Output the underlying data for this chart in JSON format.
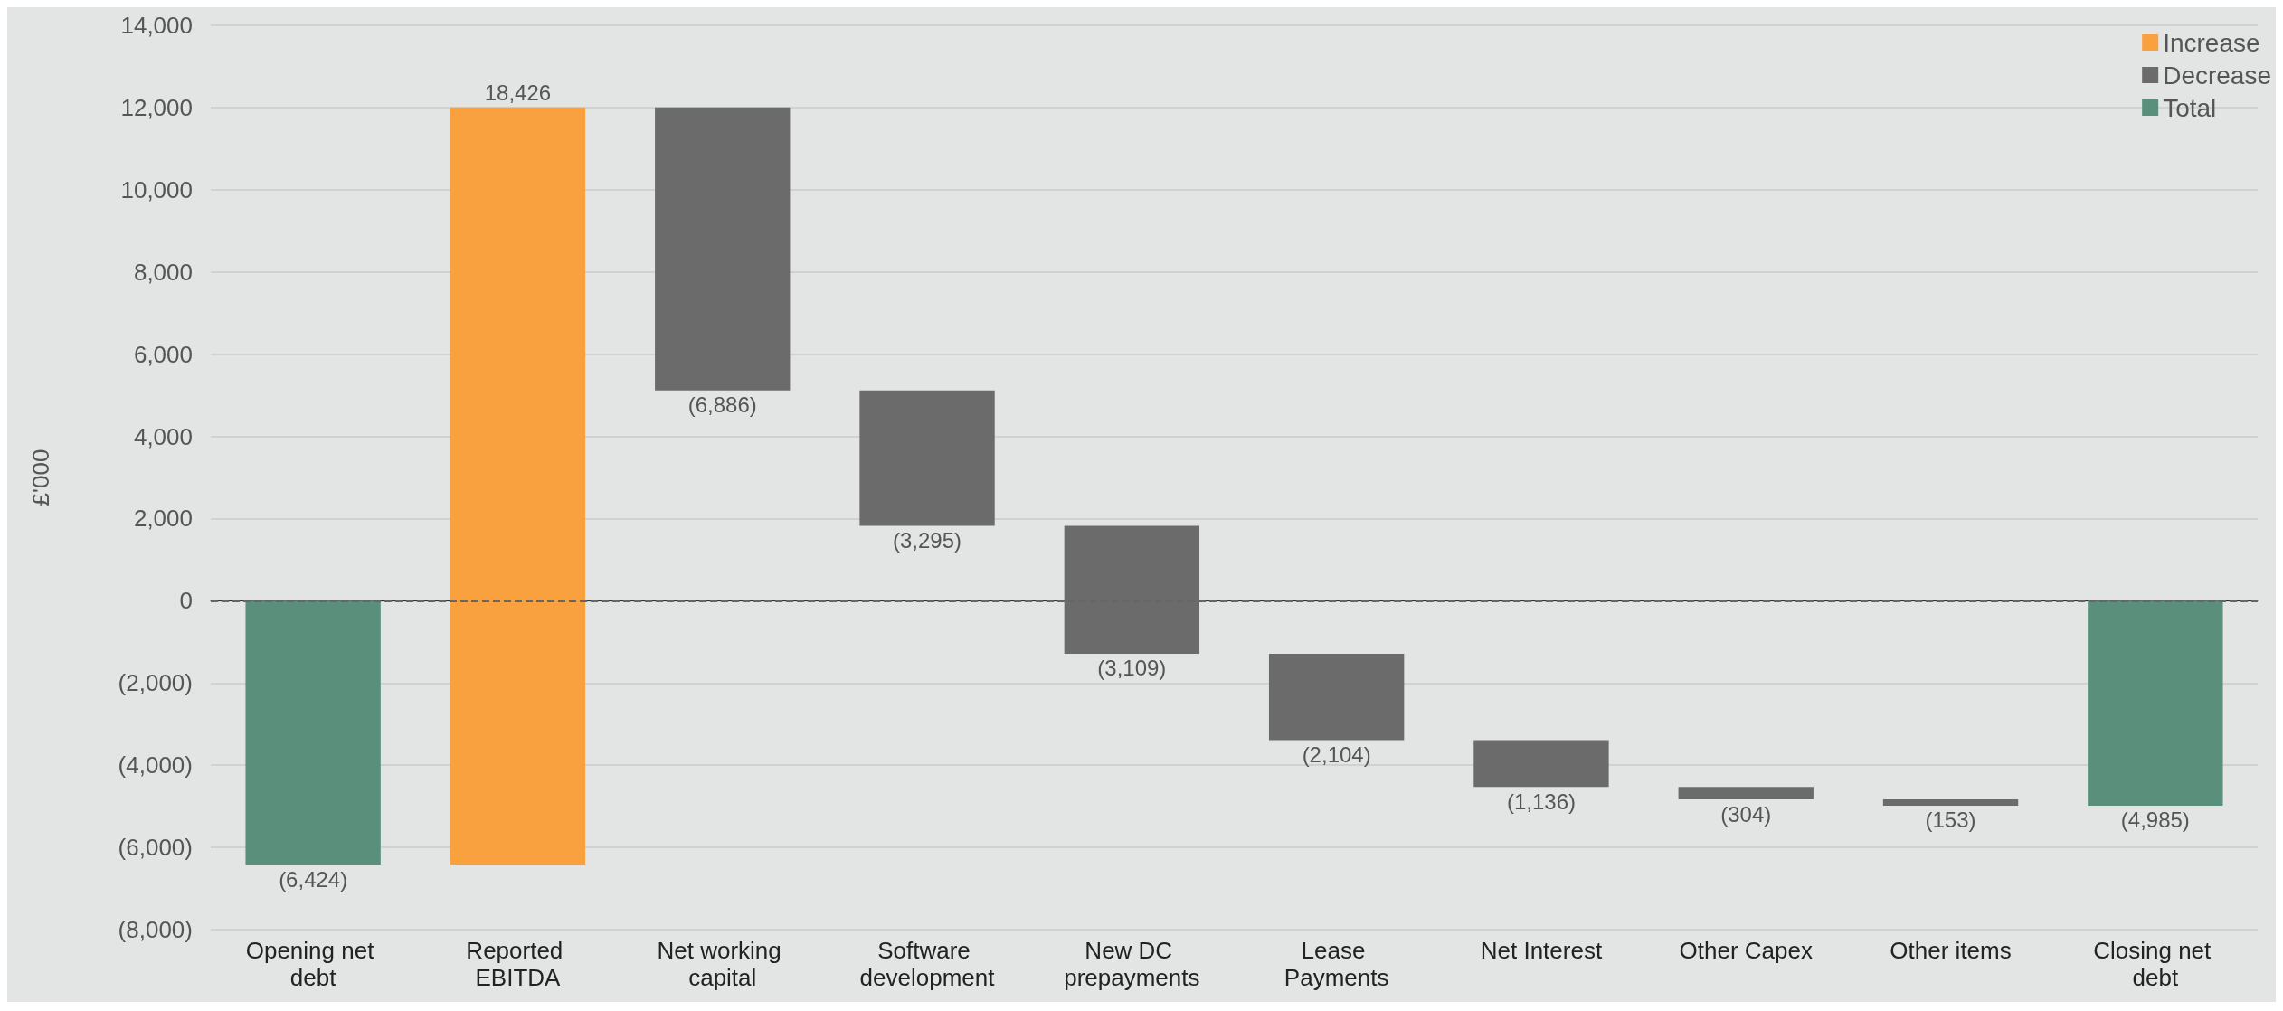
{
  "chart_data": {
    "type": "bar",
    "ylabel": "£'000",
    "categories": [
      "Opening net debt",
      "Reported EBITDA",
      "Net working capital",
      "Software development",
      "New DC prepayments",
      "Lease Payments",
      "Net Interest",
      "Other Capex",
      "Other items",
      "Closing net debt"
    ],
    "series": [
      {
        "name": "Increase",
        "color": "#f9a03f",
        "base": [
          null,
          -6424,
          null,
          null,
          null,
          null,
          null,
          null,
          null,
          null
        ],
        "values": [
          null,
          18426,
          null,
          null,
          null,
          null,
          null,
          null,
          null,
          null
        ],
        "value_labels": [
          null,
          "18,426",
          null,
          null,
          null,
          null,
          null,
          null,
          null,
          null
        ]
      },
      {
        "name": "Decrease",
        "color": "#6b6b6b",
        "base": [
          null,
          null,
          12002,
          5116,
          1821,
          -1288,
          -3392,
          -4528,
          -4832,
          null
        ],
        "values": [
          null,
          null,
          -6886,
          -3295,
          -3109,
          -2104,
          -1136,
          -304,
          -153,
          null
        ],
        "value_labels": [
          null,
          null,
          "(6,886)",
          "(3,295)",
          "(3,109)",
          "(2,104)",
          "(1,136)",
          "(304)",
          "(153)",
          null
        ]
      },
      {
        "name": "Total",
        "color": "#5a8f7b",
        "base": [
          0,
          null,
          null,
          null,
          null,
          null,
          null,
          null,
          null,
          0
        ],
        "values": [
          -6424,
          null,
          null,
          null,
          null,
          null,
          null,
          null,
          null,
          -4985
        ],
        "value_labels": [
          "(6,424)",
          null,
          null,
          null,
          null,
          null,
          null,
          null,
          null,
          "(4,985)"
        ]
      }
    ],
    "ylim": [
      -8000,
      14000
    ],
    "yticks": [
      {
        "value": -8000,
        "label": "(8,000)"
      },
      {
        "value": -6000,
        "label": "(6,000)"
      },
      {
        "value": -4000,
        "label": "(4,000)"
      },
      {
        "value": -2000,
        "label": "(2,000)"
      },
      0,
      {
        "value": 2000,
        "label": "2,000"
      },
      {
        "value": 4000,
        "label": "4,000"
      },
      {
        "value": 6000,
        "label": "6,000"
      },
      {
        "value": 8000,
        "label": "8,000"
      },
      {
        "value": 10000,
        "label": "10,000"
      },
      {
        "value": 12000,
        "label": "12,000"
      },
      {
        "value": 14000,
        "label": "14,000"
      }
    ],
    "ref_lines": [
      {
        "axis": "y",
        "value": 0,
        "color": "#666666",
        "line_style": "dashed"
      }
    ],
    "grid": "y",
    "legend": "top right"
  }
}
